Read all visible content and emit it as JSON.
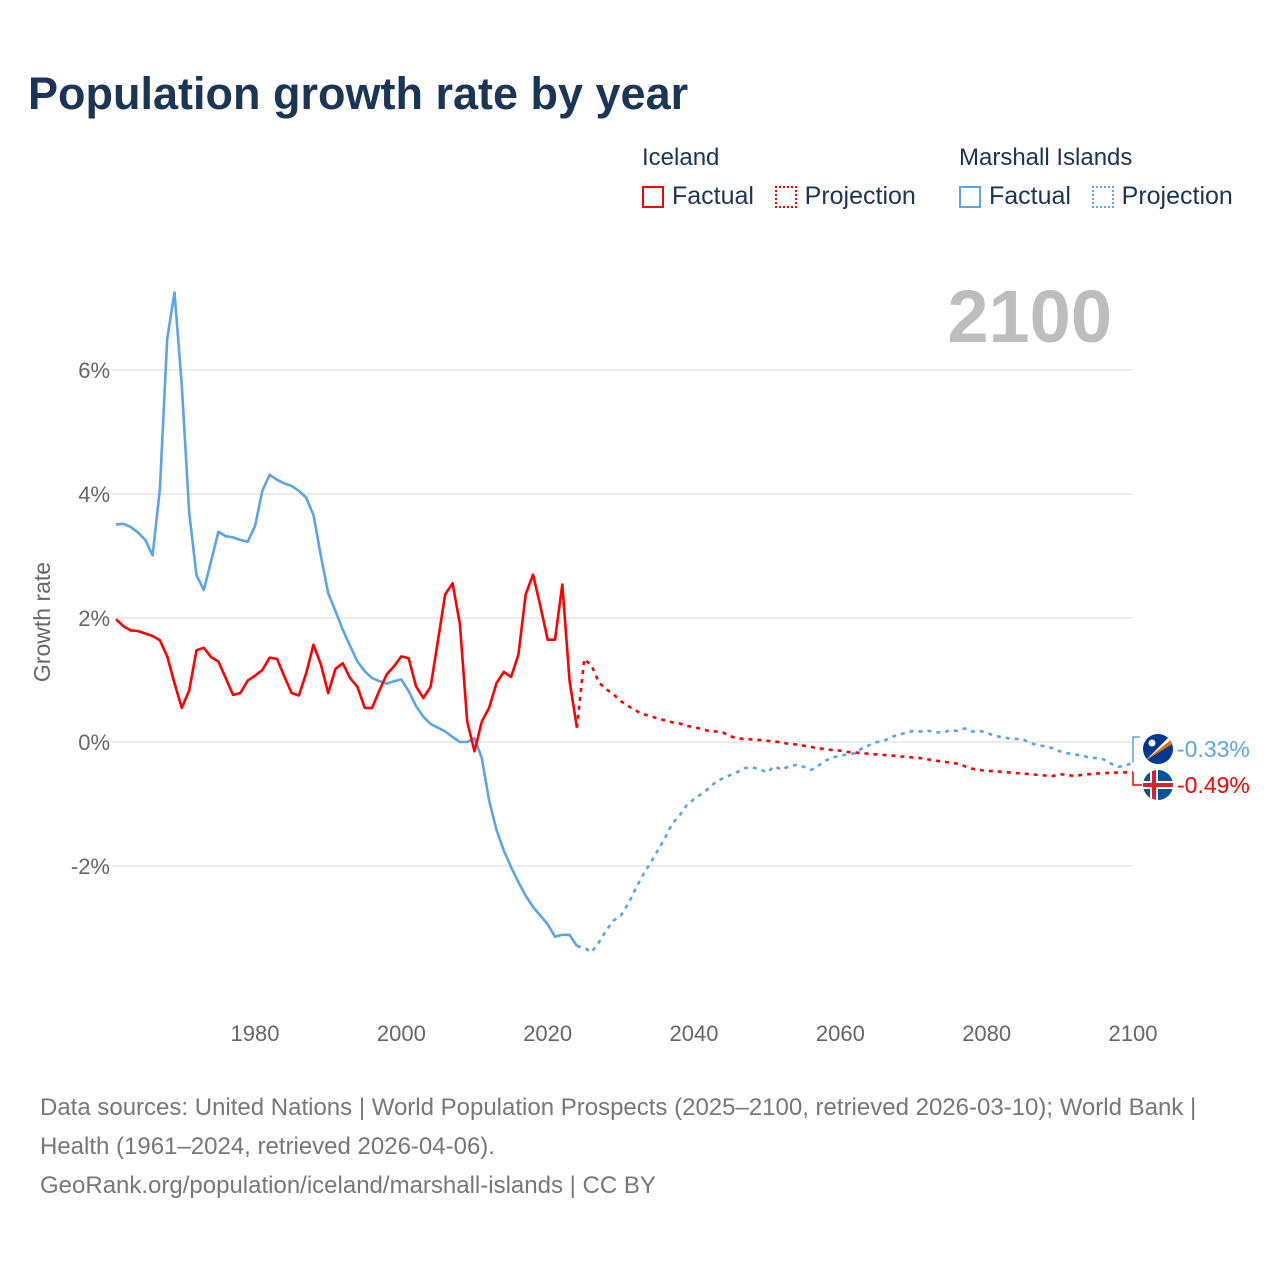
{
  "title": "Population growth rate by year",
  "legend": {
    "groups": [
      {
        "name": "Iceland",
        "color": "#ff0000",
        "factual": "Factual",
        "projection": "Projection"
      },
      {
        "name": "Marshall Islands",
        "color": "#5ba4e8",
        "factual": "Factual",
        "projection": "Projection"
      }
    ]
  },
  "source": {
    "line1": "Data sources: United Nations | World Population Prospects (2025–2100, retrieved 2026-03-10); World Bank | Health (1961–2024, retrieved 2026-04-06).",
    "line2": "GeoRank.org/population/iceland/marshall-islands | CC BY"
  },
  "chart_data": {
    "type": "line",
    "title": "Population growth rate by year",
    "ylabel": "Growth rate",
    "xlabel": "",
    "xlim": [
      1961,
      2100
    ],
    "ylim": [
      -4.1,
      7.6
    ],
    "yticks": [
      6,
      4,
      2,
      0,
      -2
    ],
    "ytick_labels": [
      "6%",
      "4%",
      "2%",
      "0%",
      "-2%"
    ],
    "xticks": [
      1980,
      2000,
      2020,
      2040,
      2060,
      2080,
      2100
    ],
    "xtick_labels": [
      "1980",
      "2000",
      "2020",
      "2040",
      "2060",
      "2080",
      "2100"
    ],
    "grid": true,
    "year_label": "2100",
    "series": [
      {
        "name": "Iceland",
        "color": "#ff0000",
        "end_label": "-0.49%",
        "factual_start": 1961,
        "factual": [
          1.98,
          1.87,
          1.8,
          1.79,
          1.75,
          1.71,
          1.64,
          1.38,
          0.95,
          0.55,
          0.83,
          1.48,
          1.52,
          1.37,
          1.3,
          1.03,
          0.76,
          0.79,
          0.99,
          1.07,
          1.16,
          1.36,
          1.34,
          1.06,
          0.79,
          0.75,
          1.11,
          1.57,
          1.25,
          0.79,
          1.18,
          1.27,
          1.03,
          0.89,
          0.55,
          0.55,
          0.83,
          1.09,
          1.22,
          1.38,
          1.35,
          0.9,
          0.71,
          0.89,
          1.63,
          2.38,
          2.56,
          1.9,
          0.33,
          -0.15,
          0.33,
          0.55,
          0.95,
          1.13,
          1.05,
          1.41,
          2.38,
          2.7,
          2.19,
          1.65,
          1.65,
          2.54,
          0.98,
          0.23
        ],
        "projection_start": 2024,
        "projection": [
          0.23,
          1.34,
          1.23,
          0.96,
          0.85,
          0.77,
          0.66,
          0.58,
          0.51,
          0.45,
          0.42,
          0.38,
          0.35,
          0.32,
          0.3,
          0.26,
          0.24,
          0.21,
          0.18,
          0.17,
          0.15,
          0.09,
          0.06,
          0.05,
          0.04,
          0.03,
          0.02,
          0.01,
          -0.01,
          -0.03,
          -0.04,
          -0.06,
          -0.08,
          -0.1,
          -0.12,
          -0.13,
          -0.14,
          -0.16,
          -0.17,
          -0.18,
          -0.19,
          -0.2,
          -0.21,
          -0.22,
          -0.23,
          -0.24,
          -0.25,
          -0.26,
          -0.28,
          -0.3,
          -0.32,
          -0.33,
          -0.35,
          -0.39,
          -0.43,
          -0.45,
          -0.47,
          -0.47,
          -0.48,
          -0.49,
          -0.5,
          -0.51,
          -0.52,
          -0.53,
          -0.54,
          -0.55,
          -0.52,
          -0.53,
          -0.55,
          -0.53,
          -0.52,
          -0.51,
          -0.5,
          -0.5,
          -0.49,
          -0.49,
          -0.49
        ]
      },
      {
        "name": "Marshall Islands",
        "color": "#5ba4e8",
        "end_label": "-0.33%",
        "factual_start": 1961,
        "factual": [
          3.51,
          3.52,
          3.47,
          3.38,
          3.26,
          3.01,
          4.08,
          6.5,
          7.25,
          5.75,
          3.7,
          2.69,
          2.45,
          2.92,
          3.39,
          3.32,
          3.3,
          3.26,
          3.23,
          3.48,
          4.05,
          4.31,
          4.23,
          4.17,
          4.13,
          4.05,
          3.94,
          3.66,
          3.0,
          2.4,
          2.11,
          1.81,
          1.55,
          1.3,
          1.14,
          1.03,
          0.98,
          0.94,
          0.98,
          1.01,
          0.82,
          0.58,
          0.41,
          0.29,
          0.23,
          0.17,
          0.08,
          0.0,
          0.0,
          0.06,
          -0.26,
          -0.94,
          -1.42,
          -1.75,
          -2.02,
          -2.26,
          -2.48,
          -2.66,
          -2.8,
          -2.94,
          -3.14,
          -3.11,
          -3.11,
          -3.29
        ],
        "projection_start": 2024,
        "projection": [
          -3.29,
          -3.32,
          -3.39,
          -3.23,
          -3.04,
          -2.88,
          -2.8,
          -2.61,
          -2.37,
          -2.15,
          -1.96,
          -1.76,
          -1.56,
          -1.32,
          -1.19,
          -1.02,
          -0.92,
          -0.84,
          -0.75,
          -0.64,
          -0.58,
          -0.53,
          -0.48,
          -0.42,
          -0.41,
          -0.44,
          -0.49,
          -0.39,
          -0.45,
          -0.39,
          -0.37,
          -0.4,
          -0.45,
          -0.38,
          -0.3,
          -0.25,
          -0.22,
          -0.2,
          -0.18,
          -0.1,
          -0.05,
          0.0,
          0.02,
          0.08,
          0.12,
          0.15,
          0.18,
          0.17,
          0.18,
          0.16,
          0.15,
          0.19,
          0.18,
          0.22,
          0.17,
          0.18,
          0.15,
          0.1,
          0.08,
          0.06,
          0.05,
          0.04,
          -0.02,
          -0.05,
          -0.07,
          -0.1,
          -0.15,
          -0.18,
          -0.2,
          -0.22,
          -0.25,
          -0.26,
          -0.28,
          -0.35,
          -0.4,
          -0.38,
          -0.33
        ]
      }
    ]
  }
}
